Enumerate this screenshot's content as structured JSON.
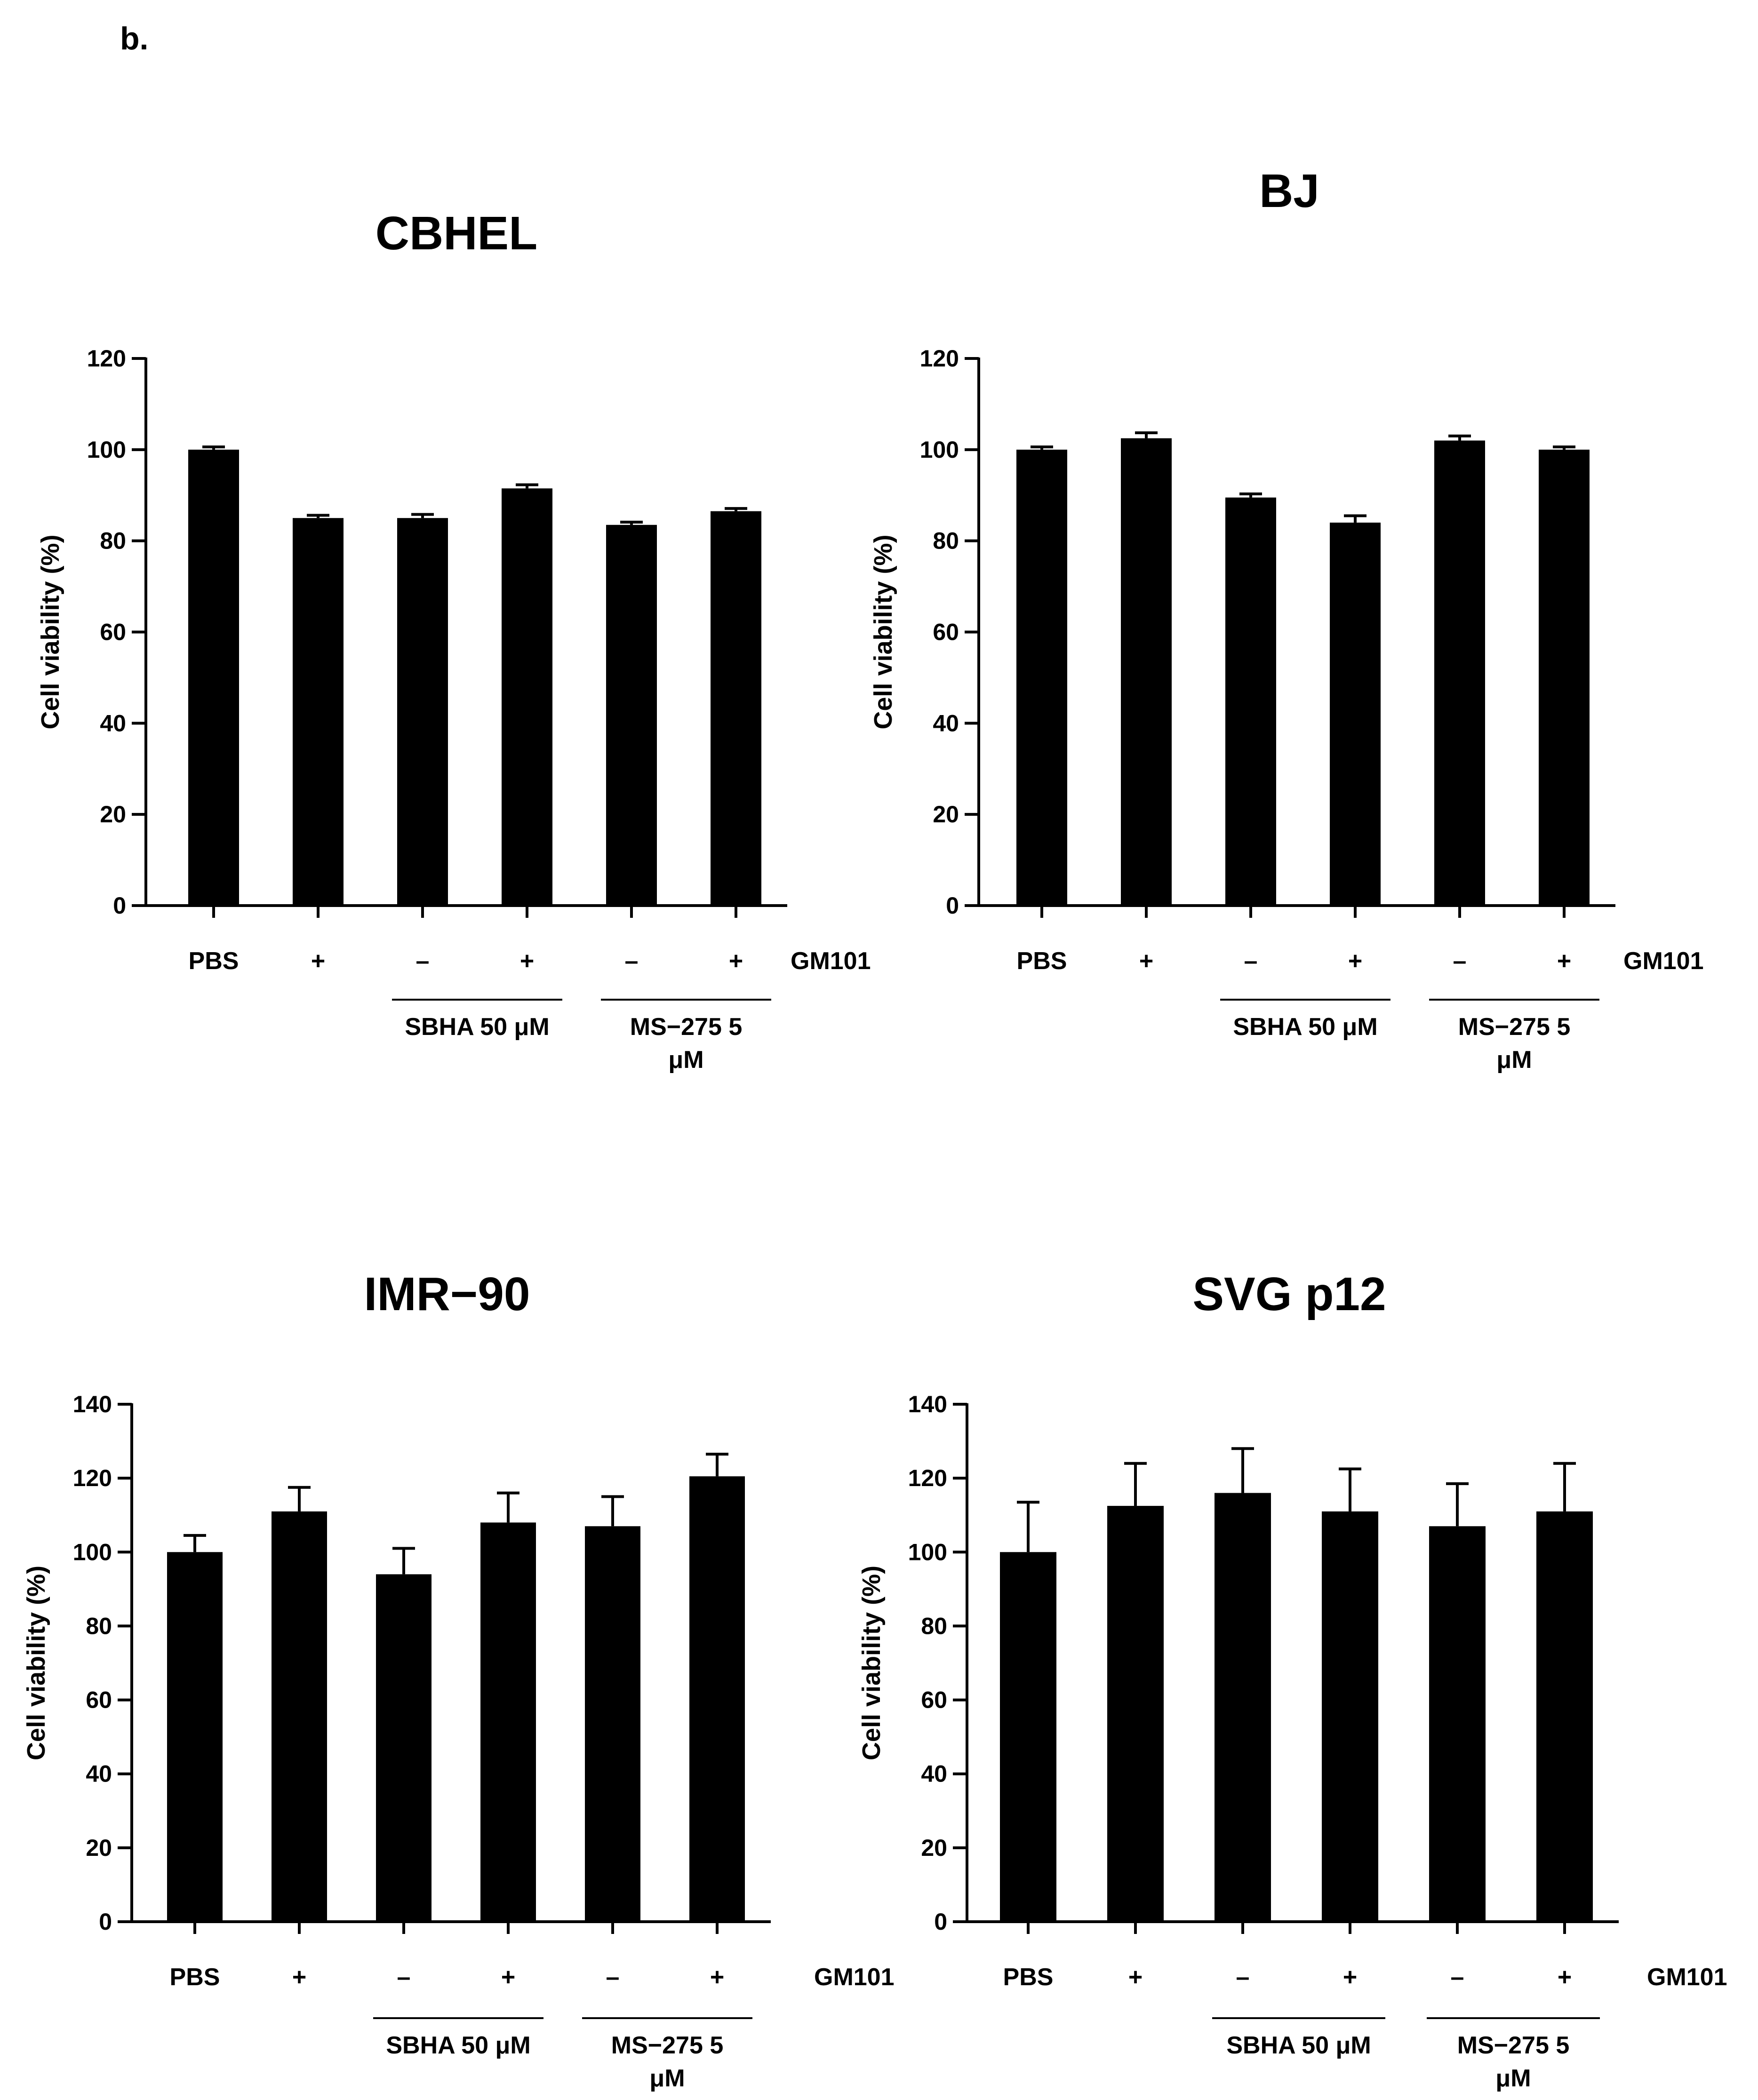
{
  "figure": {
    "panel_label": "b.",
    "colors": {
      "bar": "#000000",
      "axis": "#000000",
      "background": "#ffffff"
    }
  },
  "chart_data": [
    {
      "type": "bar",
      "title": "CBHEL",
      "ylabel": "Cell viability (%)",
      "ylim": [
        0,
        120
      ],
      "yticks": [
        "0",
        "20",
        "40",
        "60",
        "80",
        "100",
        "120"
      ],
      "categories": [
        "PBS",
        "+",
        "–",
        "+",
        "–",
        "+"
      ],
      "values": [
        100,
        85,
        85,
        91.5,
        83.5,
        86.5
      ],
      "errors": [
        0.6,
        0.6,
        0.8,
        0.8,
        0.6,
        0.6
      ],
      "row_label": "GM101",
      "groups": [
        {
          "label": "SBHA  50 μM",
          "lines": [
            "SBHA  50 μM"
          ],
          "bar_range": [
            2,
            3
          ]
        },
        {
          "label": "MS−275 5 μM",
          "lines": [
            "MS−275 5",
            "μM"
          ],
          "bar_range": [
            4,
            5
          ]
        }
      ]
    },
    {
      "type": "bar",
      "title": "BJ",
      "ylabel": "Cell viability (%)",
      "ylim": [
        0,
        120
      ],
      "yticks": [
        "0",
        "20",
        "40",
        "60",
        "80",
        "100",
        "120"
      ],
      "categories": [
        "PBS",
        "+",
        "–",
        "+",
        "–",
        "+"
      ],
      "values": [
        100,
        102.5,
        89.5,
        84,
        102,
        100
      ],
      "errors": [
        0.6,
        1.2,
        0.8,
        1.5,
        1.0,
        0.6
      ],
      "row_label": "GM101",
      "groups": [
        {
          "label": "SBHA  50 μM",
          "lines": [
            "SBHA  50 μM"
          ],
          "bar_range": [
            2,
            3
          ]
        },
        {
          "label": "MS−275 5 μM",
          "lines": [
            "MS−275 5",
            "μM"
          ],
          "bar_range": [
            4,
            5
          ]
        }
      ]
    },
    {
      "type": "bar",
      "title": "IMR−90",
      "ylabel": "Cell viability (%)",
      "ylim": [
        0,
        140
      ],
      "yticks": [
        "0",
        "20",
        "40",
        "60",
        "80",
        "100",
        "120",
        "140"
      ],
      "categories": [
        "PBS",
        "+",
        "–",
        "+",
        "–",
        "+"
      ],
      "values": [
        100,
        111,
        94,
        108,
        107,
        120.5
      ],
      "errors": [
        4.5,
        6.5,
        7,
        8,
        8,
        6
      ],
      "row_label": "GM101",
      "groups": [
        {
          "label": "SBHA  50 μM",
          "lines": [
            "SBHA  50 μM"
          ],
          "bar_range": [
            2,
            3
          ]
        },
        {
          "label": "MS−275 5 μM",
          "lines": [
            "MS−275 5",
            "μM"
          ],
          "bar_range": [
            4,
            5
          ]
        }
      ]
    },
    {
      "type": "bar",
      "title": "SVG  p12",
      "ylabel": "Cell viability (%)",
      "ylim": [
        0,
        140
      ],
      "yticks": [
        "0",
        "20",
        "40",
        "60",
        "80",
        "100",
        "120",
        "140"
      ],
      "categories": [
        "PBS",
        "+",
        "–",
        "+",
        "–",
        "+"
      ],
      "values": [
        100,
        112.5,
        116,
        111,
        107,
        111
      ],
      "errors": [
        13.5,
        11.5,
        12,
        11.5,
        11.5,
        13
      ],
      "row_label": "GM101",
      "groups": [
        {
          "label": "SBHA  50 μM",
          "lines": [
            "SBHA  50 μM"
          ],
          "bar_range": [
            2,
            3
          ]
        },
        {
          "label": "MS−275 5 μM",
          "lines": [
            "MS−275 5",
            "μM"
          ],
          "bar_range": [
            4,
            5
          ]
        }
      ]
    }
  ]
}
